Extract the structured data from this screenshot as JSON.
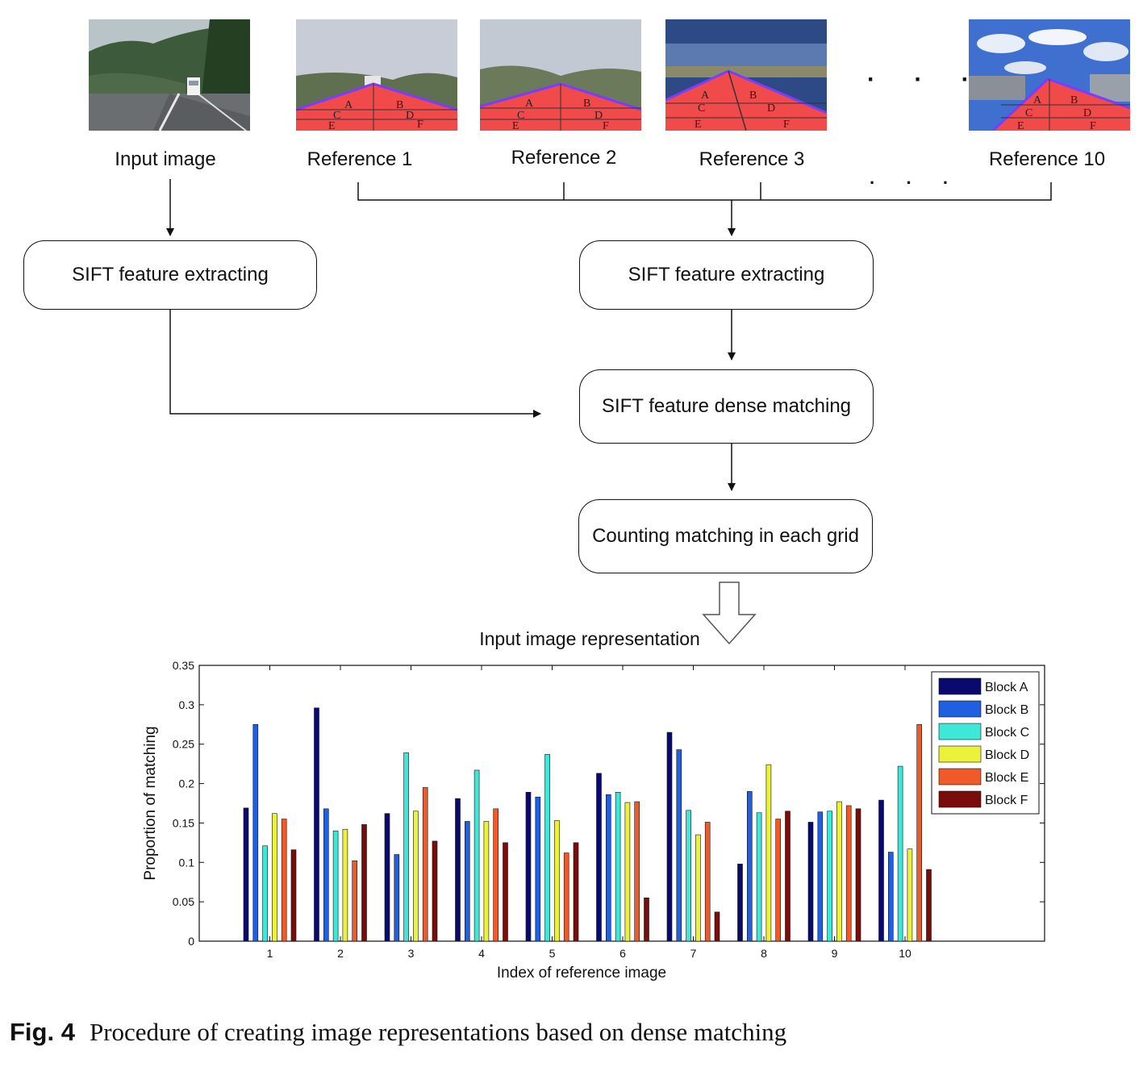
{
  "images": {
    "input_label": "Input image",
    "references": [
      {
        "label": "Reference 1",
        "blocks": [
          "A",
          "B",
          "C",
          "D",
          "E",
          "F"
        ]
      },
      {
        "label": "Reference 2",
        "blocks": [
          "A",
          "B",
          "C",
          "D",
          "E",
          "F"
        ]
      },
      {
        "label": "Reference 3",
        "blocks": [
          "A",
          "B",
          "C",
          "D",
          "E",
          "F"
        ]
      },
      {
        "label": "Reference 10",
        "blocks": [
          "A",
          "B",
          "C",
          "D",
          "E",
          "F"
        ]
      }
    ],
    "ellipsis": "· · ·"
  },
  "flow": {
    "left_box": "SIFT feature extracting",
    "right_box": "SIFT feature extracting",
    "matching_box": "SIFT feature dense matching",
    "counting_box": "Counting matching in each grid"
  },
  "caption": {
    "fig": "Fig. 4",
    "text": "Procedure of creating image representations based on dense matching"
  },
  "colors": {
    "Block A": "#0a0a6e",
    "Block B": "#1f5fe0",
    "Block C": "#3ee8d8",
    "Block D": "#ecf23a",
    "Block E": "#f05a28",
    "Block F": "#7a0c0c",
    "road_overlay": "#f04a4a",
    "road_outline": "#7a3cff"
  },
  "chart_data": {
    "type": "bar",
    "title": "Input image representation",
    "xlabel": "Index of reference image",
    "ylabel": "Proportion of matching",
    "categories": [
      "1",
      "2",
      "3",
      "4",
      "5",
      "6",
      "7",
      "8",
      "9",
      "10"
    ],
    "ylim": [
      0,
      0.35
    ],
    "yticks": [
      "0",
      "0.05",
      "0.1",
      "0.15",
      "0.2",
      "0.25",
      "0.3",
      "0.35"
    ],
    "legend_position": "top-right",
    "grid": false,
    "series": [
      {
        "name": "Block A",
        "values": [
          0.169,
          0.296,
          0.162,
          0.181,
          0.189,
          0.213,
          0.265,
          0.098,
          0.151,
          0.179
        ]
      },
      {
        "name": "Block B",
        "values": [
          0.275,
          0.168,
          0.11,
          0.152,
          0.183,
          0.186,
          0.243,
          0.19,
          0.164,
          0.113
        ]
      },
      {
        "name": "Block C",
        "values": [
          0.121,
          0.14,
          0.239,
          0.217,
          0.237,
          0.189,
          0.166,
          0.163,
          0.165,
          0.222
        ]
      },
      {
        "name": "Block D",
        "values": [
          0.162,
          0.142,
          0.165,
          0.152,
          0.153,
          0.176,
          0.135,
          0.224,
          0.177,
          0.117
        ]
      },
      {
        "name": "Block E",
        "values": [
          0.155,
          0.102,
          0.195,
          0.168,
          0.112,
          0.177,
          0.151,
          0.155,
          0.172,
          0.275
        ]
      },
      {
        "name": "Block F",
        "values": [
          0.116,
          0.148,
          0.127,
          0.125,
          0.125,
          0.055,
          0.037,
          0.165,
          0.168,
          0.091
        ]
      }
    ]
  }
}
